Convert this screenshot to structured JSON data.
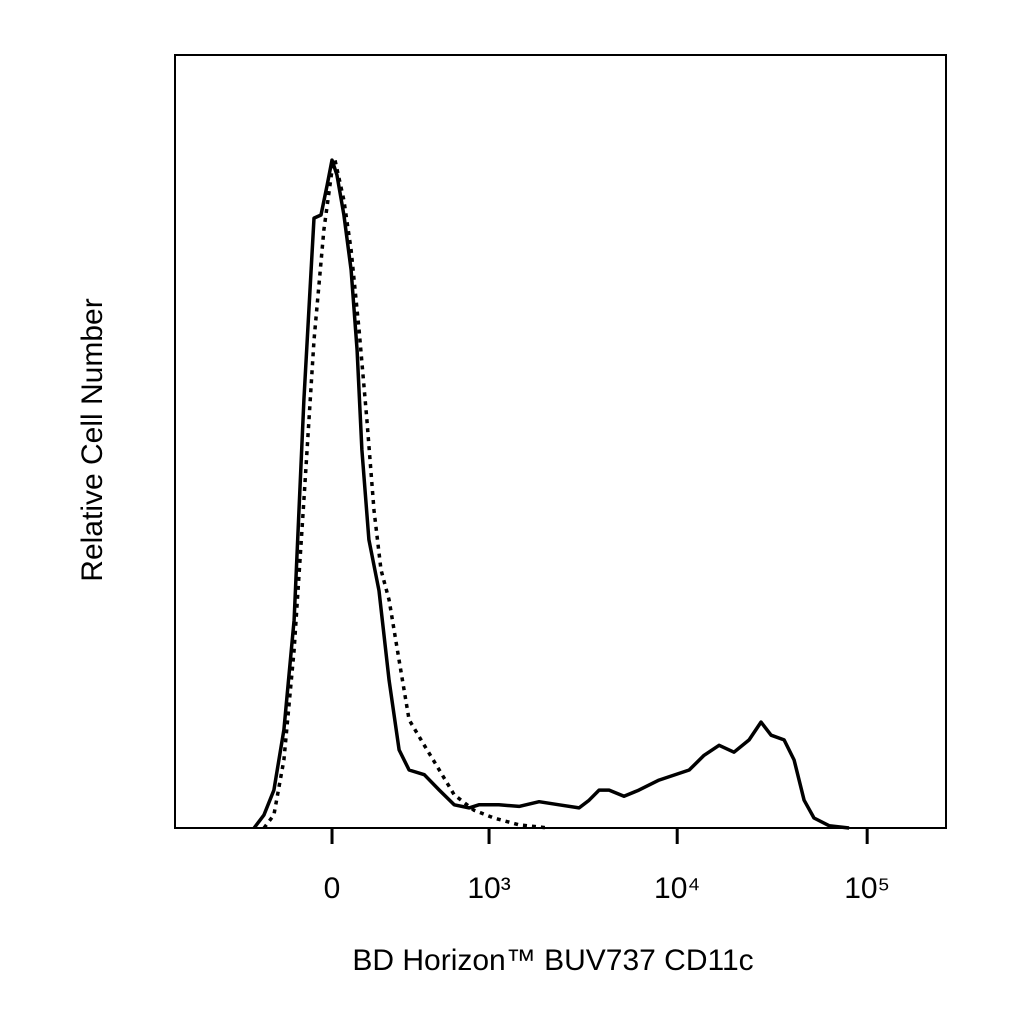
{
  "chart_data": {
    "type": "line",
    "y_label": "Relative Cell Number",
    "x_label": "BD Horizon™ BUV737 CD11c",
    "x_scale": "asinh",
    "xlim": [
      -1000,
      260000
    ],
    "ylim": [
      0,
      100
    ],
    "xticks": [
      0,
      {
        "value": 1000,
        "label": "10³"
      },
      {
        "value": 10000,
        "label": "10⁴"
      },
      {
        "value": 100000,
        "label": "10⁵"
      }
    ],
    "series": [
      {
        "color": "#000000",
        "dash": "solid",
        "x": [
          -333,
          -281,
          -233,
          -188,
          -145,
          -106,
          -67,
          -41,
          -18,
          0,
          18,
          44,
          71,
          94,
          113,
          141,
          183,
          228,
          276,
          328,
          417,
          518,
          636,
          774,
          879,
          1133,
          1456,
          1864,
          2380,
          3038,
          3431,
          3874,
          4377,
          5246,
          6283,
          8022,
          11560,
          13850,
          16620,
          19920,
          23910,
          27630,
          31200,
          36540,
          41240,
          46540,
          52520,
          63010,
          80310
        ],
        "values": [
          0,
          1.7,
          4.9,
          12.7,
          26.9,
          55.4,
          78.9,
          79.3,
          83.2,
          86.4,
          84.5,
          79.3,
          72.2,
          61.8,
          48.9,
          37.3,
          30.7,
          19.1,
          10.1,
          7.5,
          6.9,
          4.9,
          3.0,
          2.6,
          3.0,
          3.0,
          2.8,
          3.4,
          3.0,
          2.6,
          3.6,
          4.9,
          4.9,
          4.1,
          4.9,
          6.2,
          7.5,
          9.4,
          10.7,
          9.8,
          11.4,
          13.7,
          12.0,
          11.4,
          8.8,
          3.6,
          1.3,
          0.3,
          0
        ]
      },
      {
        "color": "#000000",
        "dash": "dotted",
        "x": [
          -281,
          -233,
          -188,
          -145,
          -106,
          -67,
          -30,
          0,
          11,
          44,
          71,
          102,
          133,
          162,
          192,
          228,
          276,
          328,
          417,
          518,
          636,
          825,
          1063,
          1456,
          2102
        ],
        "values": [
          0,
          1.7,
          8.8,
          23.0,
          42.4,
          63.1,
          77.4,
          85.1,
          86.4,
          81.2,
          74.8,
          64.4,
          52.8,
          41.1,
          33.4,
          29.5,
          21.7,
          14.0,
          10.7,
          7.5,
          4.3,
          2.3,
          1.3,
          0.4,
          0
        ]
      }
    ]
  }
}
